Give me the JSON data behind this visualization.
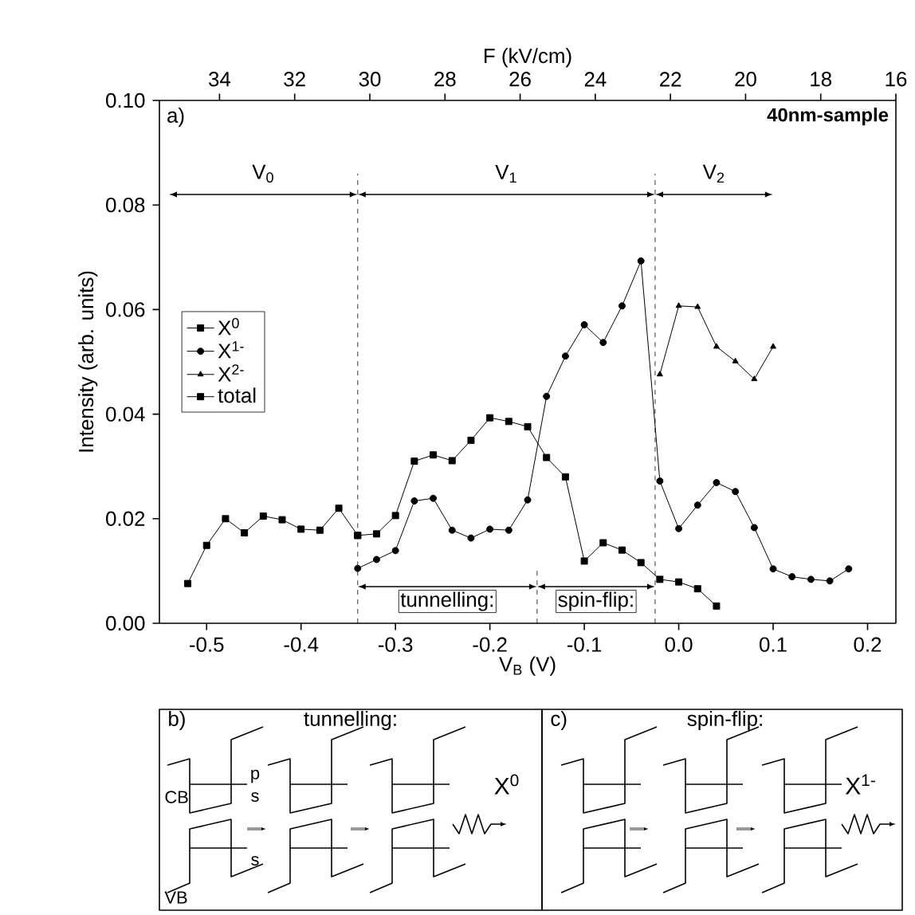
{
  "chart_data": {
    "type": "line",
    "xlabel": "V$_{B}$ (V)",
    "ylabel": "Intensity (arb. units)",
    "x2label": "F (kV/cm)",
    "xlim": [
      -0.55,
      0.23
    ],
    "xticks": [
      -0.5,
      -0.4,
      -0.3,
      -0.2,
      -0.1,
      {
        "value": 0,
        "label": "0.0"
      },
      0.1,
      0.2
    ],
    "x2lim": [
      35.6,
      16
    ],
    "x2ticks": [
      34,
      32,
      30,
      28,
      26,
      24,
      22,
      20,
      18,
      16
    ],
    "ylim": [
      0,
      0.1
    ],
    "yticks": [
      {
        "value": 0,
        "label": "0.00"
      },
      0.02,
      0.04,
      0.06,
      0.08,
      {
        "value": 0.1,
        "label": "0.10"
      }
    ],
    "legend": "left",
    "series": [
      {
        "name": "X$^{0}$",
        "color": "#000000",
        "marker": "square",
        "x": [
          -0.34,
          -0.32,
          -0.3,
          -0.28,
          -0.26,
          -0.24,
          -0.22,
          -0.2,
          -0.18,
          -0.16,
          -0.14,
          -0.12,
          -0.1,
          -0.08,
          -0.06,
          -0.04,
          -0.02,
          0.0,
          0.02,
          0.04
        ],
        "values": [
          0.0168,
          0.0171,
          0.0206,
          0.031,
          0.0322,
          0.0311,
          0.035,
          0.0393,
          0.0386,
          0.0376,
          0.0317,
          0.028,
          0.0119,
          0.0154,
          0.014,
          0.0116,
          0.0084,
          0.0079,
          0.0066,
          0.0033
        ]
      },
      {
        "name": "X$^{1-}$",
        "color": "#000000",
        "marker": "circle",
        "x": [
          -0.34,
          -0.32,
          -0.3,
          -0.28,
          -0.26,
          -0.24,
          -0.22,
          -0.2,
          -0.18,
          -0.16,
          -0.14,
          -0.12,
          -0.1,
          -0.08,
          -0.06,
          -0.04,
          -0.02,
          0.0,
          0.02,
          0.04,
          0.06,
          0.08,
          0.1,
          0.12,
          0.14,
          0.16,
          0.18
        ],
        "values": [
          0.0105,
          0.0122,
          0.0139,
          0.0234,
          0.0239,
          0.0178,
          0.0163,
          0.018,
          0.0178,
          0.0236,
          0.0434,
          0.0511,
          0.0571,
          0.0537,
          0.0607,
          0.0693,
          0.0272,
          0.0181,
          0.0226,
          0.0269,
          0.0252,
          0.0183,
          0.0104,
          0.0089,
          0.0084,
          0.0081,
          0.0104
        ]
      },
      {
        "name": "X$^{2-}$",
        "color": "#000000",
        "marker": "triangle",
        "x": [
          -0.02,
          0.0,
          0.02,
          0.04,
          0.06,
          0.08,
          0.1
        ],
        "values": [
          0.0476,
          0.0607,
          0.0605,
          0.0529,
          0.0501,
          0.0467,
          0.0529
        ]
      },
      {
        "name": "total",
        "color": "#000000",
        "marker": "square",
        "x": [
          -0.52,
          -0.5,
          -0.48,
          -0.46,
          -0.44,
          -0.42,
          -0.4,
          -0.38,
          -0.36,
          -0.34
        ],
        "values": [
          0.0076,
          0.0149,
          0.02,
          0.0173,
          0.0205,
          0.0198,
          0.018,
          0.0178,
          0.022,
          0.0168
        ]
      }
    ],
    "ref_lines": [
      {
        "axis": "x",
        "value": -0.34,
        "line_style": "dashed"
      },
      {
        "axis": "x",
        "value": -0.15,
        "line_style": "dashed"
      },
      {
        "axis": "x",
        "value": -0.025,
        "line_style": "dashed"
      }
    ],
    "annotations": [
      "a)",
      "40nm-sample",
      "b)",
      "tunnelling:",
      "CB",
      "p",
      "s",
      "VB",
      "s",
      "X$^{0}$",
      "c)",
      "spin-flip:",
      "X$^{1-}$",
      "V$_{0}$",
      "V$_{1}$",
      "V$_{2}$",
      "tunnelling:",
      "spin-flip:"
    ]
  }
}
